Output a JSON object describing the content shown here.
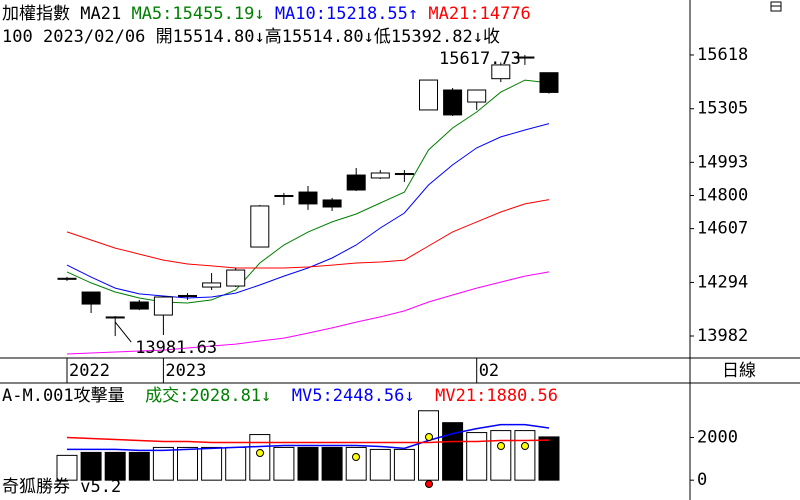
{
  "header": {
    "info": {
      "prefix": "100",
      "date": "2023/02/06",
      "items": [
        {
          "label": "開",
          "value": "15514.80",
          "arrow": "↓"
        },
        {
          "label": "高",
          "value": "15514.80",
          "arrow": "↓"
        },
        {
          "label": "低",
          "value": "15392.82",
          "arrow": "↓"
        }
      ],
      "tail": "收"
    },
    "period": "日線",
    "footer": "奇狐勝券 v5.2"
  },
  "chart_data": [
    {
      "type": "candlestick",
      "title": "加權指數",
      "indicator": "MA21",
      "sep": ":",
      "categories": [
        "2022",
        null,
        null,
        null,
        "2023",
        null,
        null,
        null,
        null,
        null,
        null,
        null,
        null,
        null,
        null,
        null,
        null,
        "02",
        null,
        null,
        null
      ],
      "open": [
        14312,
        14238,
        14087,
        14180,
        14104,
        14212,
        14267,
        14273,
        14500,
        14794,
        14820,
        14774,
        14919,
        14902,
        14922,
        15298,
        15414,
        15344,
        15480,
        15600,
        15514.8
      ],
      "high": [
        14326,
        14238,
        14098,
        14192,
        14215,
        14232,
        14349,
        14378,
        14745,
        14815,
        14855,
        14786,
        14960,
        14948,
        14948,
        15472,
        15426,
        15414,
        15575,
        15617.73,
        15514.8
      ],
      "low": [
        14303,
        14116,
        13981.63,
        14133,
        13988,
        14192,
        14250,
        14267,
        14500,
        14745,
        14716,
        14710,
        14826,
        14896,
        14879,
        15298,
        15263,
        15298,
        15460,
        15560,
        15392.82
      ],
      "close": [
        14318,
        14168,
        14093,
        14139,
        14209,
        14218,
        14291,
        14366,
        14739,
        14800,
        14751,
        14733,
        14832,
        14931,
        14928,
        15472,
        15269,
        15414,
        15560,
        15606,
        15400
      ],
      "series": [
        {
          "name": "MA5",
          "color": "#008000",
          "arrow": "↓",
          "values": [
            14355,
            14291,
            14238,
            14203,
            14180,
            14174,
            14192,
            14250,
            14407,
            14512,
            14587,
            14646,
            14692,
            14756,
            14820,
            15065,
            15193,
            15286,
            15402,
            15472,
            15455.19
          ]
        },
        {
          "name": "MA10",
          "color": "#0000ff",
          "arrow": "↑",
          "values": [
            14395,
            14325,
            14261,
            14227,
            14215,
            14203,
            14209,
            14232,
            14279,
            14331,
            14378,
            14436,
            14512,
            14611,
            14698,
            14861,
            14978,
            15077,
            15141,
            15181,
            15218.55
          ]
        },
        {
          "name": "MA21",
          "color": "#ff0000",
          "values": [
            14588,
            14541,
            14494,
            14459,
            14424,
            14401,
            14390,
            14378,
            14378,
            14378,
            14384,
            14395,
            14407,
            14413,
            14424,
            14506,
            14588,
            14646,
            14704,
            14751,
            14776
          ]
        },
        {
          "color": "#ff00ff",
          "values": [
            13877,
            13883,
            13889,
            13895,
            13900,
            13912,
            13924,
            13935,
            13953,
            13970,
            13999,
            14029,
            14063,
            14093,
            14128,
            14180,
            14221,
            14261,
            14296,
            14331,
            14355
          ]
        }
      ],
      "high_label": 15617.73,
      "low_label": 13981.63,
      "ylim": [
        13854,
        15938
      ],
      "yticks": [
        15618,
        15305,
        14993,
        14800,
        14607,
        14294,
        13982
      ]
    },
    {
      "type": "bar",
      "title": "A-M.001攻擊量",
      "sep": ":",
      "series": [
        {
          "name": "成交",
          "color": "#008000",
          "arrow": "↓",
          "bar_colors": [
            "#ffffff",
            "#000000",
            "#000000",
            "#000000",
            "#ffffff",
            "#ffffff",
            "#ffffff",
            "#ffffff",
            "#ffffff",
            "#ffffff",
            "#000000",
            "#000000",
            "#ffffff",
            "#ffffff",
            "#ffffff",
            "#ffffff",
            "#000000",
            "#ffffff",
            "#ffffff",
            "#ffffff",
            "#000000"
          ],
          "values": [
            1163,
            1302,
            1302,
            1302,
            1535,
            1535,
            1535,
            1535,
            2139,
            1535,
            1535,
            1535,
            1535,
            1442,
            1442,
            3255,
            2697,
            2232,
            2325,
            2325,
            2028.81
          ]
        },
        {
          "name": "MV5",
          "color": "#0000ff",
          "arrow": "↓",
          "values": [
            1442,
            1442,
            1442,
            1395,
            1395,
            1442,
            1488,
            1535,
            1581,
            1628,
            1628,
            1628,
            1628,
            1581,
            1488,
            1860,
            2186,
            2418,
            2604,
            2604,
            2448.56
          ]
        },
        {
          "name": "MV21",
          "color": "#ff0000",
          "values": [
            2000,
            1953,
            1907,
            1860,
            1814,
            1814,
            1767,
            1767,
            1767,
            1767,
            1767,
            1767,
            1767,
            1767,
            1767,
            1767,
            1814,
            1814,
            1860,
            1860,
            1880.56
          ]
        }
      ],
      "ylim": [
        -930,
        4510
      ],
      "yticks": [
        2000,
        0
      ]
    }
  ]
}
